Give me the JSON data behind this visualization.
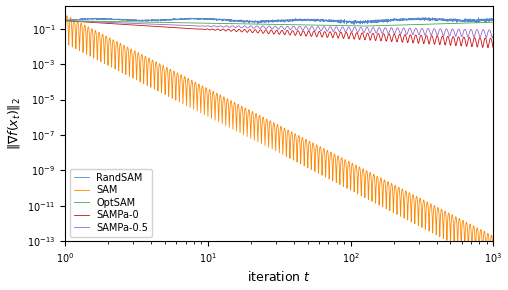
{
  "title": "",
  "xlabel": "iteration $t$",
  "ylabel": "$\\|\\nabla f(x_t)\\|_2$",
  "xlim": [
    1,
    1000
  ],
  "ylim": [
    1e-13,
    2
  ],
  "colors": {
    "RandSAM": "#5588cc",
    "SAM": "#ff8800",
    "OptSAM": "#44aa44",
    "SAMPa-0": "#cc1111",
    "SAMPa-0.5": "#9966cc"
  },
  "n_points": 3000,
  "seed": 42
}
